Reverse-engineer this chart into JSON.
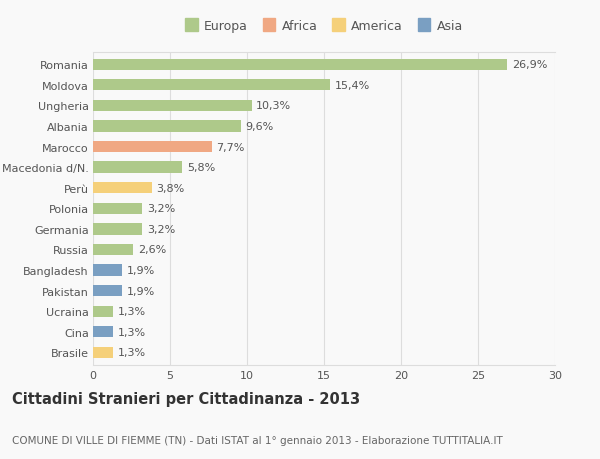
{
  "countries": [
    "Romania",
    "Moldova",
    "Ungheria",
    "Albania",
    "Marocco",
    "Macedonia d/N.",
    "Perù",
    "Polonia",
    "Germania",
    "Russia",
    "Bangladesh",
    "Pakistan",
    "Ucraina",
    "Cina",
    "Brasile"
  ],
  "values": [
    26.9,
    15.4,
    10.3,
    9.6,
    7.7,
    5.8,
    3.8,
    3.2,
    3.2,
    2.6,
    1.9,
    1.9,
    1.3,
    1.3,
    1.3
  ],
  "labels": [
    "26,9%",
    "15,4%",
    "10,3%",
    "9,6%",
    "7,7%",
    "5,8%",
    "3,8%",
    "3,2%",
    "3,2%",
    "2,6%",
    "1,9%",
    "1,9%",
    "1,3%",
    "1,3%",
    "1,3%"
  ],
  "continents": [
    "Europa",
    "Europa",
    "Europa",
    "Europa",
    "Africa",
    "Europa",
    "America",
    "Europa",
    "Europa",
    "Europa",
    "Asia",
    "Asia",
    "Europa",
    "Asia",
    "America"
  ],
  "continent_colors": {
    "Europa": "#aec98a",
    "Africa": "#f0a883",
    "America": "#f5d07a",
    "Asia": "#7a9fc2"
  },
  "legend_order": [
    "Europa",
    "Africa",
    "America",
    "Asia"
  ],
  "xlim": [
    0,
    30
  ],
  "xticks": [
    0,
    5,
    10,
    15,
    20,
    25,
    30
  ],
  "title": "Cittadini Stranieri per Cittadinanza - 2013",
  "subtitle": "COMUNE DI VILLE DI FIEMME (TN) - Dati ISTAT al 1° gennaio 2013 - Elaborazione TUTTITALIA.IT",
  "bg_color": "#f9f9f9",
  "grid_color": "#dddddd",
  "bar_height": 0.55,
  "title_fontsize": 10.5,
  "subtitle_fontsize": 7.5,
  "label_fontsize": 8,
  "tick_fontsize": 8,
  "legend_fontsize": 9
}
